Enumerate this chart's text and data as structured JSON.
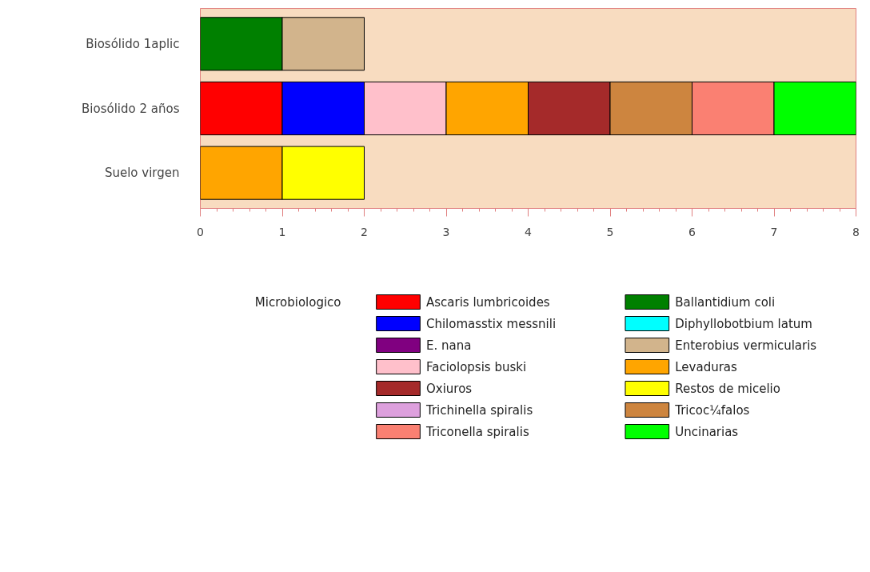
{
  "chart_data": {
    "type": "bar",
    "orientation": "horizontal",
    "stacked": true,
    "legend": "bottom",
    "legend_title": "Microbiologico",
    "grid": false,
    "categories": [
      "Biosólido 1aplic",
      "Biosólido 2 años",
      "Suelo virgen"
    ],
    "xlim": [
      0,
      8
    ],
    "xticks": [
      0,
      1,
      2,
      3,
      4,
      5,
      6,
      7,
      8
    ],
    "series": [
      {
        "name": "Ascaris lumbricoides",
        "color": "#ff0000",
        "values": [
          null,
          1,
          null
        ]
      },
      {
        "name": "Ballantidium coli",
        "color": "#008000",
        "values": [
          1,
          null,
          null
        ]
      },
      {
        "name": "Chilomasstix messnili",
        "color": "#0000ff",
        "values": [
          null,
          1,
          null
        ]
      },
      {
        "name": "Diphyllobotbium latum",
        "color": "#00ffff",
        "values": [
          null,
          null,
          null
        ]
      },
      {
        "name": "E. nana",
        "color": "#800080",
        "values": [
          null,
          null,
          null
        ]
      },
      {
        "name": "Enterobius vermicularis",
        "color": "#d2b48c",
        "values": [
          1,
          null,
          null
        ]
      },
      {
        "name": "Faciolopsis buski",
        "color": "#ffc0cb",
        "values": [
          null,
          1,
          null
        ]
      },
      {
        "name": "Levaduras",
        "color": "#ffa500",
        "values": [
          null,
          1,
          1
        ]
      },
      {
        "name": "Oxiuros",
        "color": "#a52a2a",
        "values": [
          null,
          1,
          null
        ]
      },
      {
        "name": "Restos de micelio",
        "color": "#ffff00",
        "values": [
          null,
          null,
          1
        ]
      },
      {
        "name": "Trichinella spiralis",
        "color": "#dda0dd",
        "values": [
          null,
          null,
          null
        ]
      },
      {
        "name": "Tricoc¼falos",
        "color": "#cd853f",
        "values": [
          null,
          1,
          null
        ]
      },
      {
        "name": "Triconella spiralis",
        "color": "#fa8072",
        "values": [
          null,
          1,
          null
        ]
      },
      {
        "name": "Uncinarias",
        "color": "#00ff00",
        "values": [
          null,
          1,
          null
        ]
      }
    ]
  }
}
